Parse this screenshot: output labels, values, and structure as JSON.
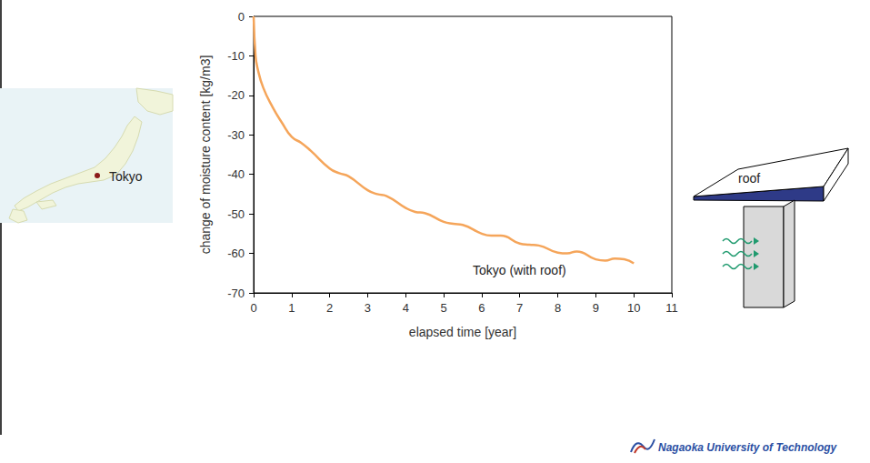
{
  "chart_data": {
    "type": "line",
    "x_label": "elapsed time [year]",
    "y_label": "change of moisture content [kg/m3]",
    "annotations": [
      {
        "text": "Tokyo (with roof)"
      }
    ],
    "x": [
      0,
      0.05,
      0.1,
      0.25,
      0.5,
      0.75,
      1,
      1.25,
      1.5,
      2,
      2.25,
      2.5,
      3,
      3.25,
      3.5,
      4,
      4.25,
      4.5,
      5,
      5.25,
      5.5,
      6,
      6.25,
      6.5,
      7,
      7.25,
      7.5,
      8,
      8.25,
      8.5,
      9,
      9.25,
      9.5,
      9.75,
      10
    ],
    "values": [
      0,
      -10,
      -13,
      -18,
      -23,
      -27,
      -30.5,
      -32,
      -34,
      -38.5,
      -39.7,
      -40.5,
      -44,
      -45,
      -45.5,
      -48.5,
      -49.5,
      -49.8,
      -52,
      -52.5,
      -52.8,
      -55,
      -55.5,
      -55.5,
      -57.5,
      -57.8,
      -58,
      -59.8,
      -60,
      -59.5,
      -61.5,
      -61.8,
      -61.3,
      -61.5,
      -62.5
    ],
    "color": "#f5a55a",
    "xlim": [
      0,
      11
    ],
    "ylim": [
      -70,
      0
    ],
    "xticks": [
      0,
      1,
      2,
      3,
      4,
      5,
      6,
      7,
      8,
      9,
      10,
      11
    ],
    "yticks": [
      -70,
      -60,
      -50,
      -40,
      -30,
      -20,
      -10,
      0
    ],
    "grid": false
  },
  "map": {
    "label": "Tokyo"
  },
  "diagram": {
    "label": "roof"
  },
  "logo": {
    "text": "Nagaoka University of Technology"
  }
}
